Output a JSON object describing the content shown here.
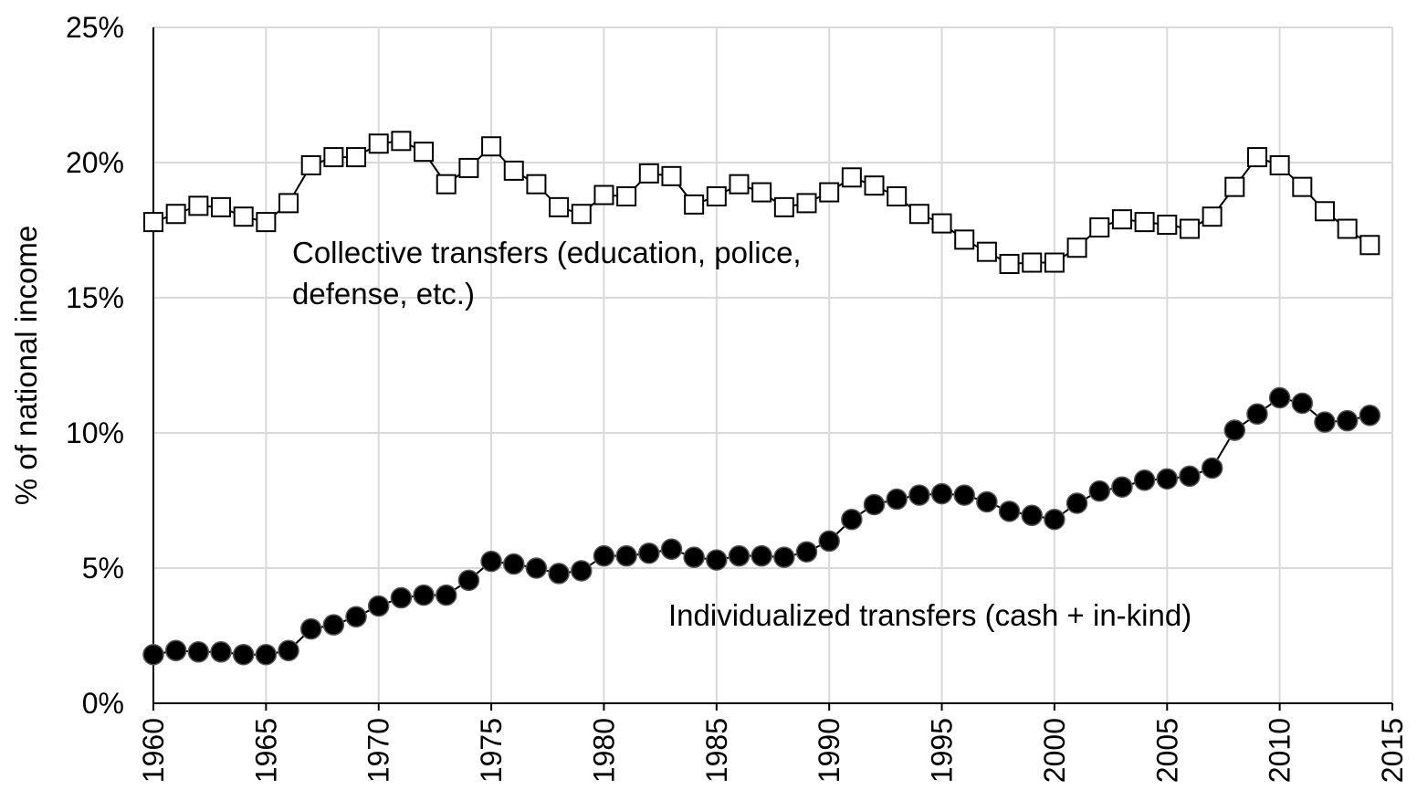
{
  "chart_data": {
    "type": "line",
    "y_label": "% of national income",
    "x": [
      1960,
      1961,
      1962,
      1963,
      1964,
      1965,
      1966,
      1967,
      1968,
      1969,
      1970,
      1971,
      1972,
      1973,
      1974,
      1975,
      1976,
      1977,
      1978,
      1979,
      1980,
      1981,
      1982,
      1983,
      1984,
      1985,
      1986,
      1987,
      1988,
      1989,
      1990,
      1991,
      1992,
      1993,
      1994,
      1995,
      1996,
      1997,
      1998,
      1999,
      2000,
      2001,
      2002,
      2003,
      2004,
      2005,
      2006,
      2007,
      2008,
      2009,
      2010,
      2011,
      2012,
      2013,
      2014
    ],
    "series": [
      {
        "color": "#000000",
        "marker": "square",
        "values": [
          17.8,
          18.1,
          18.4,
          18.35,
          18.0,
          17.8,
          18.5,
          19.9,
          20.2,
          20.2,
          20.7,
          20.8,
          20.4,
          19.2,
          19.8,
          20.6,
          19.7,
          19.2,
          18.35,
          18.1,
          18.8,
          18.75,
          19.6,
          19.5,
          18.45,
          18.75,
          19.2,
          18.9,
          18.35,
          18.5,
          18.9,
          19.45,
          19.15,
          18.75,
          18.1,
          17.75,
          17.15,
          16.7,
          16.25,
          16.3,
          16.3,
          16.85,
          17.6,
          17.9,
          17.8,
          17.7,
          17.55,
          18.0,
          19.1,
          20.2,
          19.9,
          19.1,
          18.2,
          17.55,
          16.95
        ]
      },
      {
        "color": "#000000",
        "marker": "circle",
        "values": [
          1.8,
          1.95,
          1.9,
          1.9,
          1.8,
          1.8,
          1.95,
          2.75,
          2.9,
          3.2,
          3.6,
          3.9,
          4.0,
          4.0,
          4.55,
          5.25,
          5.15,
          5.0,
          4.8,
          4.9,
          5.45,
          5.45,
          5.55,
          5.7,
          5.4,
          5.3,
          5.45,
          5.45,
          5.4,
          5.6,
          6.0,
          6.8,
          7.35,
          7.55,
          7.7,
          7.75,
          7.7,
          7.45,
          7.1,
          6.95,
          6.8,
          7.4,
          7.85,
          8.0,
          8.25,
          8.3,
          8.4,
          8.7,
          10.1,
          10.7,
          11.3,
          11.1,
          10.4,
          10.45,
          10.65
        ]
      }
    ],
    "annotations": [
      [
        "Collective transfers (education, police,",
        "defense, etc.)"
      ],
      [
        "Individualized transfers (cash + in-kind)"
      ]
    ],
    "xlim": [
      1960,
      2015
    ],
    "xticks": [
      1960,
      1965,
      1970,
      1975,
      1980,
      1985,
      1990,
      1995,
      2000,
      2005,
      2010,
      2015
    ],
    "ylim": [
      0,
      25
    ],
    "yticks": [
      {
        "value": 0,
        "label": "0%"
      },
      {
        "value": 5,
        "label": "5%"
      },
      {
        "value": 10,
        "label": "10%"
      },
      {
        "value": 15,
        "label": "15%"
      },
      {
        "value": 20,
        "label": "20%"
      },
      {
        "value": 25,
        "label": "25%"
      }
    ],
    "grid": true
  }
}
